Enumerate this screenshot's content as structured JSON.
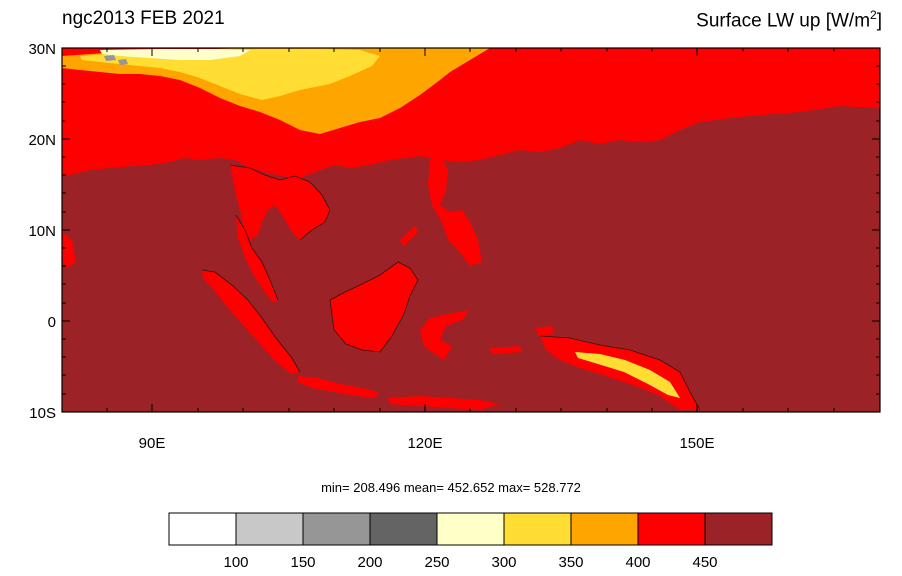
{
  "header": {
    "left_title": "ngc2013 FEB 2021",
    "right_title_main": "Surface LW up [W/m",
    "right_title_sup": "2",
    "right_title_end": "]"
  },
  "map": {
    "lat_labels": [
      "30N",
      "20N",
      "10N",
      "0",
      "10S"
    ],
    "lon_labels": [
      "90E",
      "120E",
      "150E"
    ],
    "colors": {
      "ocean": "#9b2226",
      "land_warm": "#ff0000",
      "orange": "#ffa500",
      "yellow": "#ffdd33",
      "pale": "#ffffcc"
    }
  },
  "stats": {
    "text": "min= 208.496  mean= 452.652  max= 528.772"
  },
  "colorbar": {
    "colors": [
      "#ffffff",
      "#c8c8c8",
      "#969696",
      "#646464",
      "#ffffc8",
      "#ffdd33",
      "#ffa500",
      "#ff0000",
      "#9b2226"
    ],
    "labels": [
      "100",
      "150",
      "200",
      "250",
      "300",
      "350",
      "400",
      "450"
    ]
  }
}
